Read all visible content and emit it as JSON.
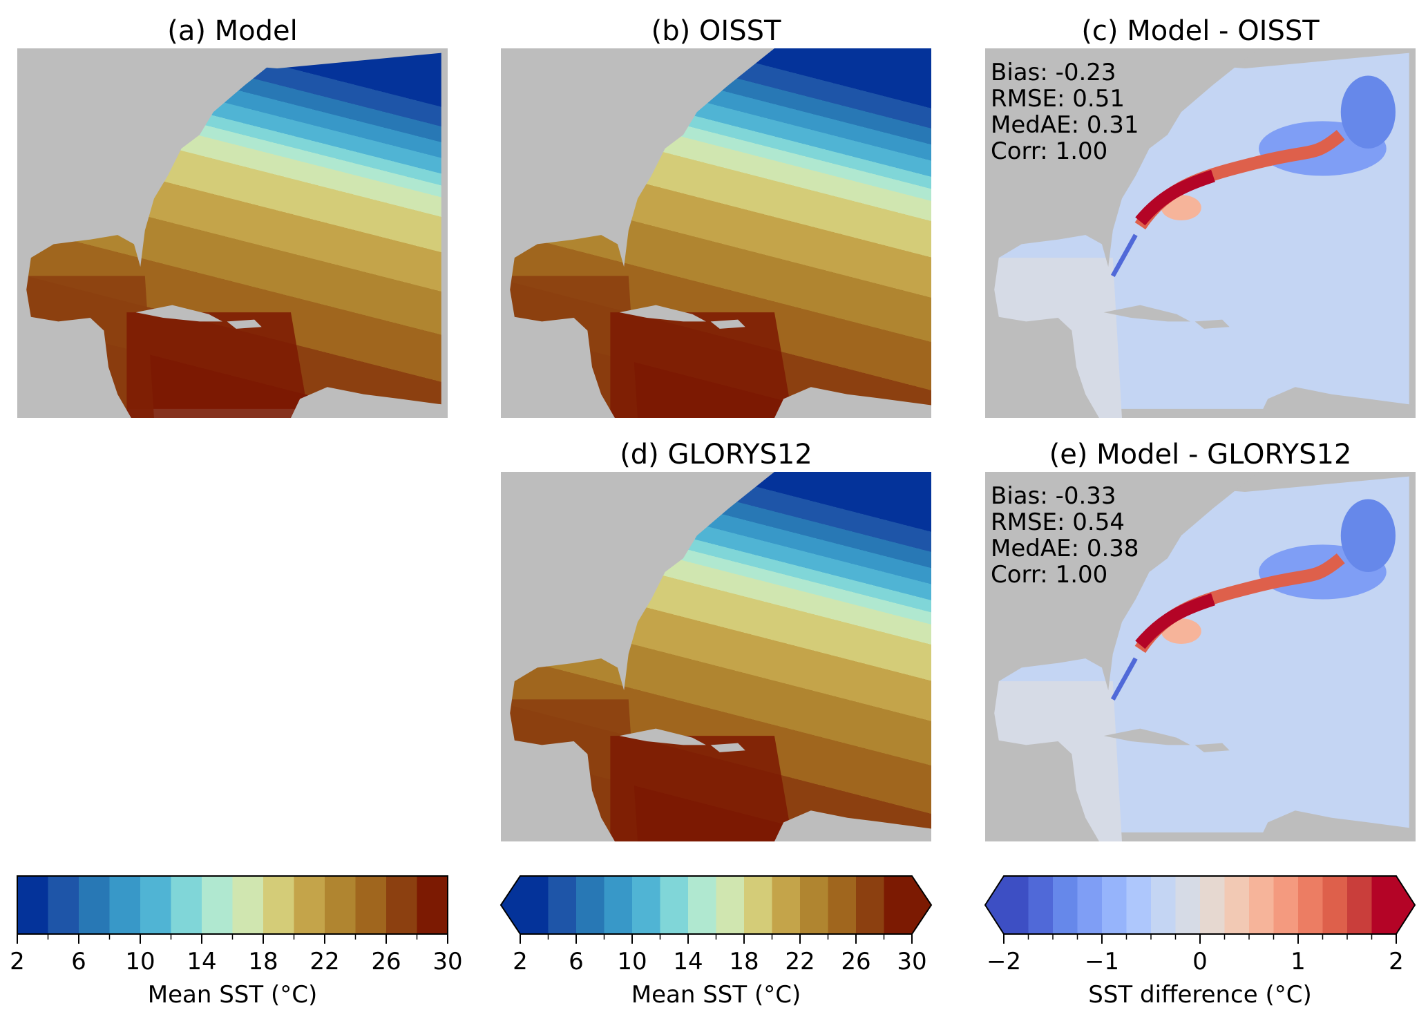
{
  "chart_data": {
    "type": "heatmap",
    "panels": [
      {
        "id": "a",
        "title": "(a) Model",
        "kind": "sst",
        "domain": "model"
      },
      {
        "id": "b",
        "title": "(b) OISST",
        "kind": "sst",
        "domain": "obs"
      },
      {
        "id": "c",
        "title": "(c) Model - OISST",
        "kind": "diff",
        "stats": [
          "Bias: -0.23",
          "RMSE: 0.51",
          "MedAE: 0.31",
          "Corr: 1.00"
        ]
      },
      {
        "id": "d",
        "title": "(d) GLORYS12",
        "kind": "sst",
        "domain": "obs"
      },
      {
        "id": "e",
        "title": "(e) Model - GLORYS12",
        "kind": "diff",
        "stats": [
          "Bias: -0.33",
          "RMSE: 0.54",
          "MedAE: 0.38",
          "Corr: 1.00"
        ]
      }
    ],
    "colorbars": [
      {
        "label": "Mean SST (°C)",
        "range": [
          2,
          30
        ],
        "step": 2,
        "extend": "neither",
        "ticks": [
          "2",
          "6",
          "10",
          "14",
          "18",
          "22",
          "26",
          "30"
        ]
      },
      {
        "label": "Mean SST (°C)",
        "range": [
          2,
          30
        ],
        "step": 2,
        "extend": "both",
        "ticks": [
          "2",
          "6",
          "10",
          "14",
          "18",
          "22",
          "26",
          "30"
        ]
      },
      {
        "label": "SST difference (°C)",
        "range": [
          -2,
          2
        ],
        "step": 0.25,
        "extend": "both",
        "ticks": [
          "−2",
          "−1",
          "0",
          "1",
          "2"
        ]
      }
    ],
    "sst_colors": [
      "#04339a",
      "#1e55a8",
      "#2878b5",
      "#3898c8",
      "#50b4d4",
      "#80d6d8",
      "#b0e8d0",
      "#d0e6b0",
      "#d4cc78",
      "#c4a44a",
      "#b08530",
      "#a0661e",
      "#8c4010",
      "#7c1a02"
    ],
    "diff_colors": [
      "#3d4fc4",
      "#5069d8",
      "#6688ea",
      "#7f9ef5",
      "#96b4fb",
      "#aec7fc",
      "#c4d5f3",
      "#d6dbe6",
      "#e6d8d0",
      "#f2c9b4",
      "#f6b49a",
      "#f49a7f",
      "#ec7d63",
      "#de604b",
      "#c93e3b",
      "#b40426"
    ],
    "land_color": "#bdbdbd"
  }
}
